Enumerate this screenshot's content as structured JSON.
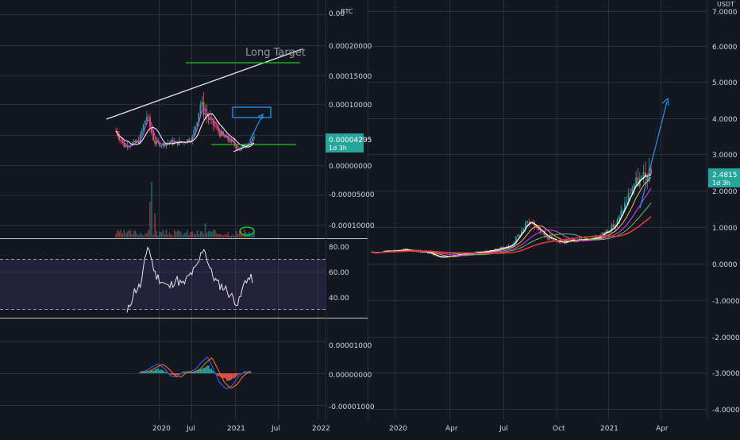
{
  "left_chart": {
    "currency": "BTC",
    "price_ticks": [
      "0.00020000",
      "0.00015000",
      "0.00010000",
      "0.00000000",
      "-0.00005000",
      "-0.00010000"
    ],
    "partial_tick": "0.00",
    "current_price": "0.00004295",
    "countdown": "1d 3h",
    "annotation_text": "Long Target",
    "rsi_ticks": [
      "80.00",
      "60.00",
      "40.00"
    ],
    "macd_ticks": [
      "0.00001000",
      "0.00000000",
      "-0.00001000"
    ],
    "x_ticks": [
      "2020",
      "Jul",
      "2021",
      "Jul",
      "2022"
    ]
  },
  "right_chart": {
    "currency": "USDT",
    "price_ticks": [
      "7.0000",
      "6.0000",
      "5.0000",
      "4.0000",
      "3.0000",
      "2.0000",
      "1.0000",
      "0.0000",
      "-1.0000",
      "-2.0000",
      "-3.0000",
      "-4.0000"
    ],
    "current_price": "2.4815",
    "countdown": "1d 3h",
    "x_ticks": [
      "2020",
      "Apr",
      "Jul",
      "Oct",
      "2021",
      "Apr"
    ]
  },
  "colors": {
    "background": "#131722",
    "grid": "#2a2e39",
    "text": "#d1d4dc",
    "accent_teal": "#26a69a",
    "up": "#26a69a",
    "down": "#ef5350",
    "annotation_green": "#21c421",
    "annotation_blue": "#2196f3",
    "rsi_band": "#7e57c2"
  },
  "chart_data": [
    {
      "type": "candlestick",
      "title": "",
      "quote_currency": "BTC",
      "ylim": [
        -0.0001,
        0.0002
      ],
      "last_price": 4.295e-05,
      "x": [
        "2019-09",
        "2019-10",
        "2019-11",
        "2019-12",
        "2020-01",
        "2020-02",
        "2020-03",
        "2020-04",
        "2020-05",
        "2020-06",
        "2020-07",
        "2020-08",
        "2020-09",
        "2020-10",
        "2020-11",
        "2020-12",
        "2021-01",
        "2021-02",
        "2021-03"
      ],
      "close": [
        5.7e-05,
        3.2e-05,
        3.5e-05,
        4e-05,
        8.3e-05,
        3.8e-05,
        3.4e-05,
        3.9e-05,
        3.7e-05,
        4e-05,
        4.6e-05,
        0.000102,
        7.8e-05,
        6.2e-05,
        4.7e-05,
        4e-05,
        2.5e-05,
        3.6e-05,
        4.3e-05
      ],
      "annotations": [
        "Long Target"
      ],
      "grid": true
    },
    {
      "type": "line",
      "title": "",
      "indicator": "RSI",
      "ylim": [
        20,
        85
      ],
      "x": [
        "2019-09",
        "2019-10",
        "2019-11",
        "2019-12",
        "2020-01",
        "2020-02",
        "2020-03",
        "2020-04",
        "2020-05",
        "2020-06",
        "2020-07",
        "2020-08",
        "2020-09",
        "2020-10",
        "2020-11",
        "2020-12",
        "2021-01",
        "2021-02",
        "2021-03"
      ],
      "values": [
        26,
        44,
        49,
        82,
        58,
        52,
        47,
        54,
        49,
        57,
        63,
        80,
        60,
        50,
        47,
        40,
        34,
        54,
        54
      ],
      "bands": [
        30,
        70
      ]
    },
    {
      "type": "bar",
      "title": "",
      "indicator": "MACD",
      "ylim": [
        -1.2e-05,
        1.3e-05
      ],
      "x": [
        "2019-09",
        "2019-10",
        "2019-11",
        "2019-12",
        "2020-01",
        "2020-02",
        "2020-03",
        "2020-04",
        "2020-05",
        "2020-06",
        "2020-07",
        "2020-08",
        "2020-09",
        "2020-10",
        "2020-11",
        "2020-12",
        "2021-01",
        "2021-02",
        "2021-03"
      ],
      "values": [
        4e-07,
        8e-07,
        2e-06,
        3e-06,
        1.5e-06,
        -8e-07,
        -1.2e-06,
        5e-07,
        4e-07,
        1.2e-06,
        3.5e-06,
        5.2e-06,
        1e-06,
        -3e-06,
        -5e-06,
        -3.8e-06,
        -1e-06,
        6e-07,
        4e-07
      ]
    },
    {
      "type": "candlestick",
      "title": "",
      "quote_currency": "USDT",
      "ylim": [
        -4.2,
        7.2
      ],
      "last_price": 2.4815,
      "x": [
        "2019-11",
        "2019-12",
        "2020-01",
        "2020-02",
        "2020-03",
        "2020-04",
        "2020-05",
        "2020-06",
        "2020-07",
        "2020-08",
        "2020-09",
        "2020-10",
        "2020-11",
        "2020-12",
        "2021-01",
        "2021-02",
        "2021-03"
      ],
      "close": [
        0.3,
        0.36,
        0.38,
        0.33,
        0.18,
        0.25,
        0.31,
        0.38,
        0.51,
        1.2,
        0.75,
        0.58,
        0.68,
        0.75,
        1.1,
        2.2,
        2.48
      ],
      "grid": true
    }
  ]
}
